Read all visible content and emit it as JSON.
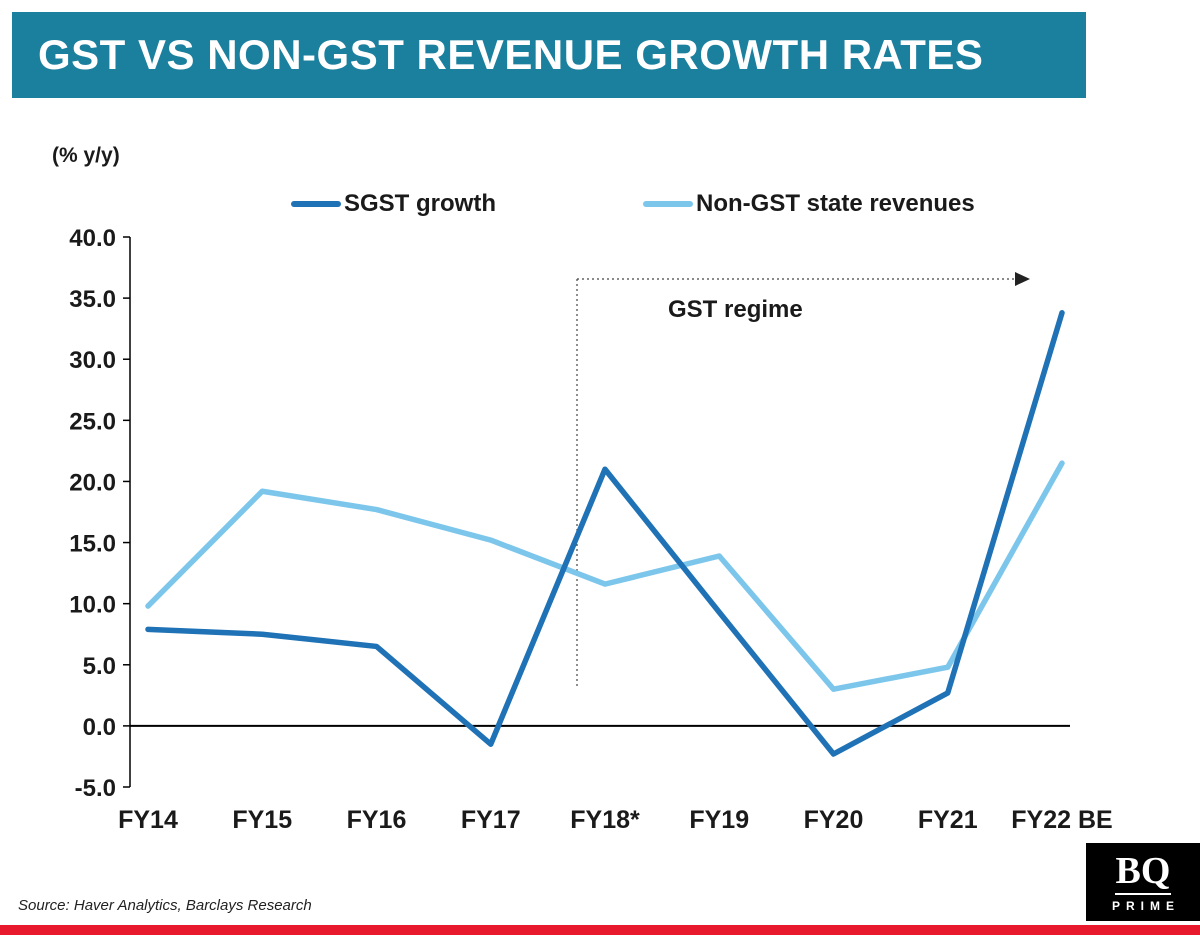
{
  "chart_data": {
    "type": "line",
    "title": "GST VS NON-GST REVENUE GROWTH RATES",
    "ylabel": "(% y/y)",
    "xlabel": "",
    "categories": [
      "FY14",
      "FY15",
      "FY16",
      "FY17",
      "FY18*",
      "FY19",
      "FY20",
      "FY21",
      "FY22 BE"
    ],
    "series": [
      {
        "name": "SGST growth",
        "color": "#1F72B5",
        "values": [
          7.9,
          7.5,
          6.5,
          -1.5,
          21.0,
          9.3,
          -2.3,
          2.7,
          33.8
        ]
      },
      {
        "name": "Non-GST state revenues",
        "color": "#7CC6EC",
        "values": [
          9.8,
          19.2,
          17.7,
          15.2,
          11.6,
          13.9,
          3.0,
          4.8,
          21.5
        ]
      }
    ],
    "ylim": [
      -5,
      40
    ],
    "ytick_step": 5,
    "ytick_decimals": 1,
    "grid": false,
    "legend_position": "top",
    "annotation": {
      "label": "GST regime",
      "x_category": "FY18*",
      "direction": "right"
    }
  },
  "footer": {
    "source": "Source: Haver Analytics, Barclays Research"
  },
  "logo": {
    "line1": "BQ",
    "line2": "PRIME"
  },
  "colors": {
    "banner": "#1B7F9E",
    "bottom_bar": "#E8192C",
    "logo_bg": "#000000",
    "text": "#1A1A1A",
    "annotation_line": "#444444"
  }
}
